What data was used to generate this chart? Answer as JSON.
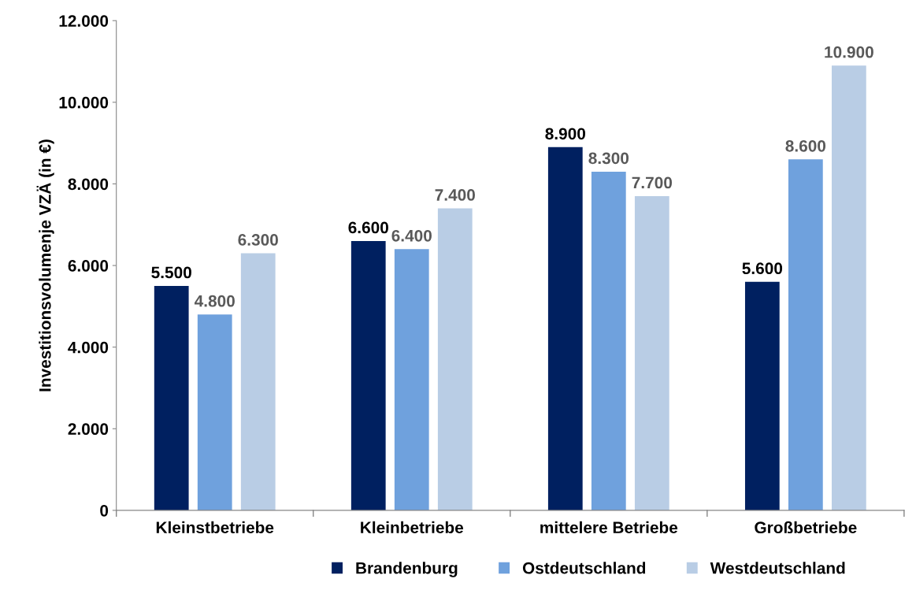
{
  "chart_data": {
    "type": "bar",
    "ylabel": "Investitionsvolumenje VZÄ (in €)",
    "categories": [
      "Kleinstbetriebe",
      "Kleinbetriebe",
      "mittelere Betriebe",
      "Großbetriebe"
    ],
    "series": [
      {
        "name": "Brandenburg",
        "color": "#002060",
        "values": [
          5500,
          6600,
          8900,
          5600
        ],
        "value_labels": [
          "5.500",
          "6.600",
          "8.900",
          "5.600"
        ]
      },
      {
        "name": "Ostdeutschland",
        "color": "#6fa1dd",
        "values": [
          4800,
          6400,
          8300,
          8600
        ],
        "value_labels": [
          "4.800",
          "6.400",
          "8.300",
          "8.600"
        ]
      },
      {
        "name": "Westdeutschland",
        "color": "#b9cde5",
        "values": [
          6300,
          7400,
          7700,
          10900
        ],
        "value_labels": [
          "6.300",
          "7.400",
          "7.700",
          "10.900"
        ]
      }
    ],
    "ylim": [
      0,
      12000
    ],
    "yticks": [
      {
        "value": 0,
        "label": "0"
      },
      {
        "value": 2000,
        "label": "2.000"
      },
      {
        "value": 4000,
        "label": "4.000"
      },
      {
        "value": 6000,
        "label": "6.000"
      },
      {
        "value": 8000,
        "label": "8.000"
      },
      {
        "value": 10000,
        "label": "10.000"
      },
      {
        "value": 12000,
        "label": "12.000"
      }
    ],
    "grid": false,
    "legend": "bottom"
  }
}
